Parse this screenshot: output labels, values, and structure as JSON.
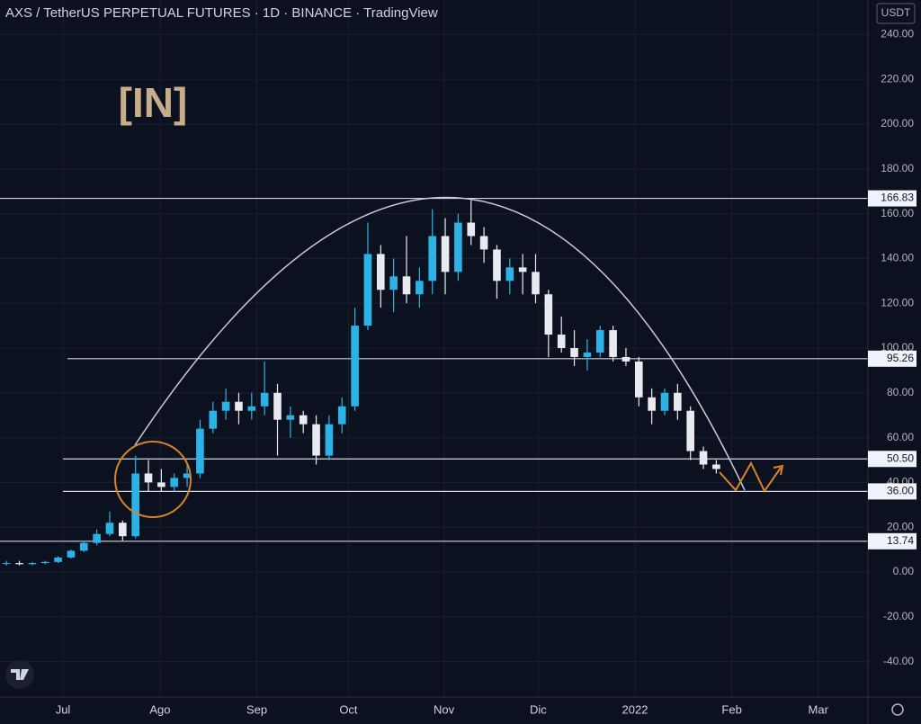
{
  "chart_data": {
    "type": "candlestick",
    "title": "AXS / TetherUS PERPETUAL FUTURES · 1D · BINANCE · TradingView",
    "currency": "USDT",
    "logo_text": "[IN]",
    "up_color": "#2bb3e6",
    "down_color": "#e8eaf0",
    "categories": [
      null,
      null,
      null,
      null,
      null,
      null,
      null,
      null,
      null,
      null,
      null,
      null,
      null,
      null,
      null,
      null,
      null,
      null,
      null,
      null,
      null,
      null,
      null,
      null,
      null,
      null,
      null,
      null,
      null,
      null,
      null,
      null,
      null,
      null,
      null,
      null,
      null,
      null,
      null,
      null,
      null,
      null,
      null,
      null,
      null,
      null,
      null,
      null,
      null,
      null,
      null,
      null,
      null,
      null,
      null,
      null
    ],
    "open": [
      4,
      4,
      3.5,
      4,
      4.5,
      6.5,
      9.5,
      13,
      17,
      22,
      16,
      44,
      40,
      38,
      42,
      44,
      64,
      72,
      76,
      72,
      74,
      80,
      68,
      70,
      66,
      52,
      66,
      74,
      110,
      142,
      126,
      132,
      124,
      130,
      150,
      134,
      156,
      150,
      144,
      130,
      136,
      134,
      124,
      106,
      100,
      96,
      98,
      108,
      96,
      94,
      78,
      72,
      80,
      72,
      54,
      48
    ],
    "high": [
      5,
      5,
      4.5,
      5,
      7,
      10,
      14,
      19,
      27,
      23,
      52,
      50,
      46,
      44,
      48,
      68,
      76,
      82,
      80,
      80,
      94,
      84,
      74,
      72,
      70,
      70,
      78,
      118,
      156,
      146,
      140,
      150,
      136,
      162,
      158,
      160,
      166,
      154,
      146,
      140,
      142,
      142,
      126,
      114,
      108,
      104,
      110,
      110,
      100,
      96,
      82,
      82,
      84,
      74,
      56,
      50
    ],
    "low": [
      3,
      3,
      3,
      3.5,
      4,
      6,
      9,
      12,
      16,
      14,
      15,
      36,
      36,
      36,
      38,
      42,
      62,
      68,
      66,
      68,
      70,
      52,
      60,
      62,
      48,
      50,
      62,
      72,
      108,
      118,
      116,
      120,
      118,
      124,
      124,
      130,
      146,
      138,
      122,
      124,
      124,
      120,
      96,
      98,
      92,
      90,
      96,
      94,
      92,
      74,
      66,
      70,
      68,
      50,
      46,
      44
    ],
    "close": [
      4,
      3.5,
      4,
      4.5,
      6.5,
      9.5,
      13,
      17,
      22,
      16,
      44,
      40,
      38,
      42,
      44,
      64,
      72,
      76,
      72,
      74,
      80,
      68,
      70,
      66,
      52,
      66,
      74,
      110,
      142,
      126,
      132,
      124,
      130,
      150,
      134,
      156,
      150,
      144,
      130,
      136,
      134,
      124,
      106,
      100,
      96,
      98,
      108,
      96,
      94,
      78,
      72,
      80,
      72,
      54,
      48,
      46
    ],
    "xlim": [
      -0.5,
      66.75
    ],
    "xticks": [
      {
        "value": 4.38,
        "label": "Jul"
      },
      {
        "value": 11.9,
        "label": "Ago"
      },
      {
        "value": 19.4,
        "label": "Sep"
      },
      {
        "value": 26.5,
        "label": "Oct"
      },
      {
        "value": 33.9,
        "label": "Nov"
      },
      {
        "value": 41.2,
        "label": "Dic"
      },
      {
        "value": 48.7,
        "label": "2022"
      },
      {
        "value": 56.2,
        "label": "Feb"
      },
      {
        "value": 62.9,
        "label": "Mar"
      }
    ],
    "ylim": [
      -55.8,
      255.4
    ],
    "yticks": [
      {
        "value": -40,
        "label": "-40.00"
      },
      {
        "value": -20,
        "label": "-20.00"
      },
      {
        "value": 0,
        "label": "0.00"
      },
      {
        "value": 20,
        "label": "20.00"
      },
      {
        "value": 40,
        "label": "40.00"
      },
      {
        "value": 60,
        "label": "60.00"
      },
      {
        "value": 80,
        "label": "80.00"
      },
      {
        "value": 100,
        "label": "100.00"
      },
      {
        "value": 120,
        "label": "120.00"
      },
      {
        "value": 140,
        "label": "140.00"
      },
      {
        "value": 160,
        "label": "160.00"
      },
      {
        "value": 180,
        "label": "180.00"
      },
      {
        "value": 200,
        "label": "200.00"
      },
      {
        "value": 220,
        "label": "220.00"
      },
      {
        "value": 240,
        "label": "240.00"
      }
    ],
    "levels": [
      166.83,
      95.26,
      {
        "value": 50.5,
        "label": "50.50"
      },
      {
        "value": 36,
        "label": "36.00"
      },
      13.74
    ],
    "grid": true
  }
}
